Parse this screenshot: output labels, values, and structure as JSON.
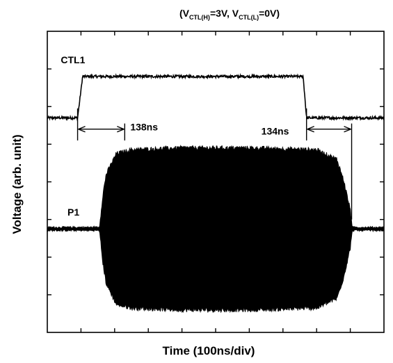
{
  "chart_data": {
    "type": "line",
    "title": {
      "segments": [
        {
          "text": "(V",
          "sub": false
        },
        {
          "text": "CTL(H)",
          "sub": true
        },
        {
          "text": "=3V, V",
          "sub": false
        },
        {
          "text": "CTL(L)",
          "sub": true
        },
        {
          "text": "=0V)",
          "sub": false
        }
      ]
    },
    "xlabel": "Time  (100ns/div)",
    "ylabel": "Voltage  (arb. unit)",
    "xlim": [
      0,
      1000
    ],
    "ylim": [
      0,
      8
    ],
    "grid": false,
    "series": [
      {
        "name": "CTL1",
        "kind": "pulse",
        "low": 5.7,
        "high": 6.8,
        "x": [
          0,
          90,
          105,
          760,
          770,
          1000
        ],
        "y": [
          5.7,
          5.7,
          6.8,
          6.8,
          5.7,
          5.7
        ]
      },
      {
        "name": "P1",
        "kind": "rf-envelope",
        "baseline": 2.75,
        "envelope_x": [
          0,
          155,
          165,
          175,
          205,
          250,
          400,
          600,
          800,
          860,
          880,
          900,
          906,
          1000
        ],
        "envelope_amplitude": [
          0.04,
          0.04,
          0.9,
          1.45,
          2.0,
          2.1,
          2.15,
          2.15,
          2.1,
          1.85,
          1.3,
          0.5,
          0.04,
          0.04
        ]
      }
    ],
    "annotations": [
      {
        "text": "138ns",
        "arrow_x": [
          90,
          230
        ]
      },
      {
        "text": "134ns",
        "arrow_x": [
          770,
          904
        ]
      }
    ]
  }
}
